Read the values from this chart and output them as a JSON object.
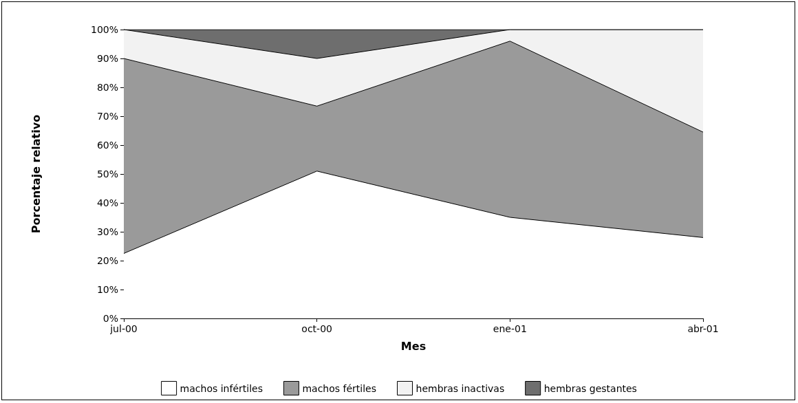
{
  "chart_data": {
    "type": "area",
    "stacked": true,
    "xlabel": "Mes",
    "ylabel": "Porcentaje relativo",
    "categories": [
      "jul-00",
      "oct-00",
      "ene-01",
      "abr-01"
    ],
    "series": [
      {
        "name": "machos infértiles",
        "color": "#ffffff",
        "values": [
          22.5,
          51,
          35,
          28
        ]
      },
      {
        "name": "machos fértiles",
        "color": "#9a9a9a",
        "values": [
          67.5,
          22.5,
          61,
          36.5
        ]
      },
      {
        "name": "hembras inactivas",
        "color": "#f2f2f2",
        "values": [
          10,
          16.5,
          4,
          35.5
        ]
      },
      {
        "name": "hembras gestantes",
        "color": "#6e6e6e",
        "values": [
          0,
          10,
          0,
          0
        ]
      }
    ],
    "ylim": [
      0,
      100
    ],
    "yticks": [
      {
        "value": 0,
        "label": "0%"
      },
      {
        "value": 10,
        "label": "10%"
      },
      {
        "value": 20,
        "label": "20%"
      },
      {
        "value": 30,
        "label": "30%"
      },
      {
        "value": 40,
        "label": "40%"
      },
      {
        "value": 50,
        "label": "50%"
      },
      {
        "value": 60,
        "label": "60%"
      },
      {
        "value": 70,
        "label": "70%"
      },
      {
        "value": 80,
        "label": "80%"
      },
      {
        "value": 90,
        "label": "90%"
      },
      {
        "value": 100,
        "label": "100%"
      }
    ],
    "grid": false,
    "legend": "bottom",
    "marker": "none"
  }
}
